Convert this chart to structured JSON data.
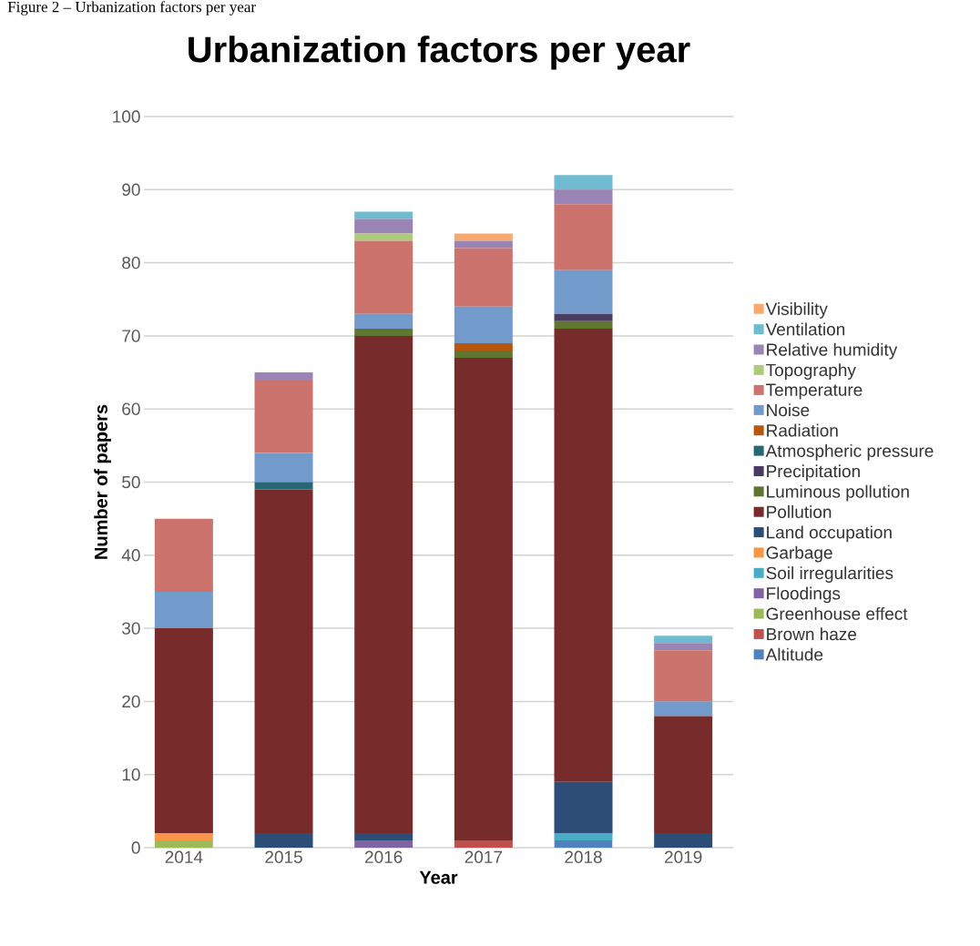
{
  "chart_data": {
    "type": "bar",
    "stacked": true,
    "title": "Urbanization factors per year",
    "xlabel": "Year",
    "ylabel": "Number of papers",
    "annotations": [
      "Figure 2 – Urbanization factors per year"
    ],
    "categories": [
      "2014",
      "2015",
      "2016",
      "2017",
      "2018",
      "2019"
    ],
    "ylim": [
      0,
      100
    ],
    "yticks": [
      0,
      10,
      20,
      30,
      40,
      50,
      60,
      70,
      80,
      90,
      100
    ],
    "grid": "y",
    "legend": "right",
    "series": [
      {
        "name": "Altitude",
        "color": "#4f81bd",
        "values": [
          0,
          0,
          0,
          0,
          1,
          0
        ]
      },
      {
        "name": "Brown haze",
        "color": "#c0504d",
        "values": [
          0,
          0,
          0,
          1,
          0,
          0
        ]
      },
      {
        "name": "Greenhouse effect",
        "color": "#9bbb59",
        "values": [
          1,
          0,
          0,
          0,
          0,
          0
        ]
      },
      {
        "name": "Floodings",
        "color": "#8064a2",
        "values": [
          0,
          0,
          1,
          0,
          0,
          0
        ]
      },
      {
        "name": "Soil irregularities",
        "color": "#4bacc6",
        "values": [
          0,
          0,
          0,
          0,
          1,
          0
        ]
      },
      {
        "name": "Garbage",
        "color": "#f79646",
        "values": [
          1,
          0,
          0,
          0,
          0,
          0
        ]
      },
      {
        "name": "Land occupation",
        "color": "#2c4d75",
        "values": [
          0,
          2,
          1,
          0,
          7,
          2
        ]
      },
      {
        "name": "Pollution",
        "color": "#772b2b",
        "values": [
          28,
          47,
          68,
          66,
          62,
          16
        ]
      },
      {
        "name": "Luminous pollution",
        "color": "#5f7530",
        "values": [
          0,
          0,
          1,
          1,
          1,
          0
        ]
      },
      {
        "name": "Precipitation",
        "color": "#4b3a61",
        "values": [
          0,
          0,
          0,
          0,
          1,
          0
        ]
      },
      {
        "name": "Atmospheric pressure",
        "color": "#276674",
        "values": [
          0,
          1,
          0,
          0,
          0,
          0
        ]
      },
      {
        "name": "Radiation",
        "color": "#b9560d",
        "values": [
          0,
          0,
          0,
          1,
          0,
          0
        ]
      },
      {
        "name": "Noise",
        "color": "#729bcc",
        "values": [
          5,
          4,
          2,
          5,
          6,
          2
        ]
      },
      {
        "name": "Temperature",
        "color": "#cc736e",
        "values": [
          10,
          10,
          10,
          8,
          9,
          7
        ]
      },
      {
        "name": "Topography",
        "color": "#afca7a",
        "values": [
          0,
          0,
          1,
          0,
          0,
          0
        ]
      },
      {
        "name": "Relative humidity",
        "color": "#9a84b6",
        "values": [
          0,
          1,
          2,
          1,
          2,
          1
        ]
      },
      {
        "name": "Ventilation",
        "color": "#6fbbd0",
        "values": [
          0,
          0,
          1,
          0,
          2,
          1
        ]
      },
      {
        "name": "Visibility",
        "color": "#f9a96e",
        "values": [
          0,
          0,
          0,
          1,
          0,
          0
        ]
      }
    ]
  }
}
